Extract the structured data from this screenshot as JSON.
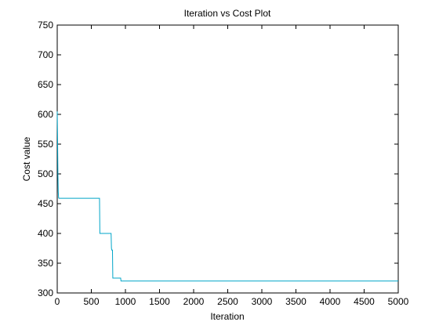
{
  "chart_data": {
    "type": "line",
    "title": "Iteration vs Cost Plot",
    "xlabel": "Iteration",
    "ylabel": "Cost value",
    "xlim": [
      0,
      5000
    ],
    "ylim": [
      300,
      750
    ],
    "x_ticks": [
      0,
      500,
      1000,
      1500,
      2000,
      2500,
      3000,
      3500,
      4000,
      4500,
      5000
    ],
    "y_ticks": [
      300,
      350,
      400,
      450,
      500,
      550,
      600,
      650,
      700,
      750
    ],
    "grid": false,
    "series": [
      {
        "color": "#00a5c8",
        "x": [
          0,
          5,
          10,
          15,
          20,
          25,
          620,
          625,
          790,
          795,
          800,
          810,
          815,
          930,
          935,
          5000
        ],
        "y": [
          605,
          560,
          500,
          470,
          460,
          459,
          459,
          400,
          400,
          375,
          372,
          372,
          325,
          325,
          320,
          320
        ]
      }
    ]
  }
}
